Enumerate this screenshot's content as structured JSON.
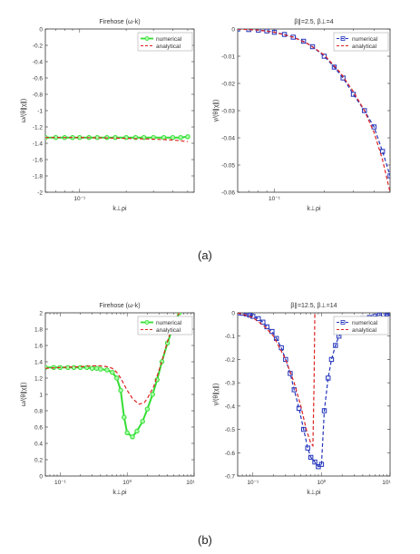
{
  "captions": {
    "a": "(a)",
    "b": "(b)"
  },
  "colors": {
    "numerical_a": "#33dd33",
    "numerical_b1": "#33dd33",
    "numerical_b2": "#2233bb",
    "analytical": "#dd2222",
    "axis": "#333333"
  },
  "chart_data": [
    {
      "id": "a1",
      "type": "line",
      "title": "Firehose (ω-k)",
      "xlabel": "k⊥ρi",
      "ylabel": "ω/(θ∥χ∥)",
      "x_scale": "log",
      "x_ticks": [
        {
          "v": 0.1,
          "label": "10⁻¹"
        }
      ],
      "ylim": [
        -2,
        0
      ],
      "y_ticks": [
        {
          "v": 0,
          "label": "0"
        },
        {
          "v": -0.2,
          "label": "-0.2"
        },
        {
          "v": -0.4,
          "label": "-0.4"
        },
        {
          "v": -0.6,
          "label": "-0.6"
        },
        {
          "v": -0.8,
          "label": "-0.8"
        },
        {
          "v": -1.0,
          "label": "-1"
        },
        {
          "v": -1.2,
          "label": "-1.2"
        },
        {
          "v": -1.4,
          "label": "-1.4"
        },
        {
          "v": -1.6,
          "label": "-1.6"
        },
        {
          "v": -1.8,
          "label": "-1.8"
        },
        {
          "v": -2.0,
          "label": "-2"
        }
      ],
      "legend_position": "top-right",
      "series": [
        {
          "name": "numerical",
          "style": "solid-circle",
          "x": [
            0.06,
            0.07,
            0.08,
            0.09,
            0.1,
            0.115,
            0.13,
            0.15,
            0.17,
            0.2,
            0.23,
            0.26,
            0.3,
            0.35,
            0.4,
            0.45,
            0.5
          ],
          "y": [
            -1.33,
            -1.33,
            -1.33,
            -1.33,
            -1.33,
            -1.33,
            -1.33,
            -1.33,
            -1.33,
            -1.33,
            -1.33,
            -1.33,
            -1.33,
            -1.33,
            -1.33,
            -1.33,
            -1.32
          ]
        },
        {
          "name": "analytical",
          "style": "dashed",
          "x": [
            0.06,
            0.1,
            0.15,
            0.2,
            0.25,
            0.3,
            0.35,
            0.4,
            0.45,
            0.5
          ],
          "y": [
            -1.33,
            -1.33,
            -1.335,
            -1.34,
            -1.345,
            -1.35,
            -1.355,
            -1.36,
            -1.37,
            -1.38
          ]
        }
      ]
    },
    {
      "id": "a2",
      "type": "line",
      "title": "β∥=2.5, β⊥=4",
      "xlabel": "k⊥ρi",
      "ylabel": "γ/(θ∥χ∥)",
      "x_scale": "log",
      "x_ticks": [
        {
          "v": 0.1,
          "label": "10⁻¹"
        }
      ],
      "ylim": [
        -0.06,
        0
      ],
      "y_ticks": [
        {
          "v": 0,
          "label": "0"
        },
        {
          "v": -0.01,
          "label": "-0.01"
        },
        {
          "v": -0.02,
          "label": "-0.02"
        },
        {
          "v": -0.03,
          "label": "-0.03"
        },
        {
          "v": -0.04,
          "label": "-0.04"
        },
        {
          "v": -0.05,
          "label": "-0.05"
        },
        {
          "v": -0.06,
          "label": "-0.06"
        }
      ],
      "legend_position": "top-right",
      "series": [
        {
          "name": "numerical",
          "style": "dashed-square",
          "x": [
            0.06,
            0.07,
            0.08,
            0.09,
            0.1,
            0.115,
            0.13,
            0.15,
            0.17,
            0.2,
            0.23,
            0.26,
            0.3,
            0.35,
            0.4,
            0.45,
            0.5
          ],
          "y": [
            0,
            -0.0002,
            -0.0004,
            -0.0007,
            -0.0012,
            -0.002,
            -0.003,
            -0.0045,
            -0.0065,
            -0.01,
            -0.014,
            -0.018,
            -0.024,
            -0.03,
            -0.036,
            -0.045,
            -0.054
          ]
        },
        {
          "name": "analytical",
          "style": "dashed",
          "x": [
            0.06,
            0.08,
            0.1,
            0.13,
            0.16,
            0.2,
            0.25,
            0.3,
            0.35,
            0.4,
            0.45,
            0.5
          ],
          "y": [
            0,
            -0.0004,
            -0.0012,
            -0.003,
            -0.0055,
            -0.0095,
            -0.016,
            -0.023,
            -0.03,
            -0.038,
            -0.048,
            -0.06
          ]
        }
      ]
    },
    {
      "id": "b1",
      "type": "line",
      "title": "Firehose (ω-k)",
      "xlabel": "k⊥ρi",
      "ylabel": "ω/(θ∥χ∥)",
      "x_scale": "log",
      "x_ticks": [
        {
          "v": 0.1,
          "label": "10⁻¹"
        },
        {
          "v": 1,
          "label": "10⁰"
        },
        {
          "v": 10,
          "label": "10¹"
        }
      ],
      "ylim": [
        0,
        2
      ],
      "y_ticks": [
        {
          "v": 0,
          "label": "0"
        },
        {
          "v": 0.2,
          "label": "0.2"
        },
        {
          "v": 0.4,
          "label": "0.4"
        },
        {
          "v": 0.6,
          "label": "0.6"
        },
        {
          "v": 0.8,
          "label": "0.8"
        },
        {
          "v": 1.0,
          "label": "1"
        },
        {
          "v": 1.2,
          "label": "1.2"
        },
        {
          "v": 1.4,
          "label": "1.4"
        },
        {
          "v": 1.6,
          "label": "1.6"
        },
        {
          "v": 1.8,
          "label": "1.8"
        },
        {
          "v": 2.0,
          "label": "2"
        }
      ],
      "legend_position": "top-right",
      "series": [
        {
          "name": "numerical",
          "style": "solid-circle",
          "x": [
            0.06,
            0.08,
            0.1,
            0.13,
            0.16,
            0.2,
            0.25,
            0.3,
            0.35,
            0.4,
            0.5,
            0.6,
            0.7,
            0.8,
            0.9,
            1.0,
            1.2,
            1.4,
            1.7,
            2.0,
            2.4,
            2.8,
            3.3,
            4.0,
            5.0,
            6.0
          ],
          "y": [
            1.33,
            1.33,
            1.33,
            1.33,
            1.33,
            1.33,
            1.33,
            1.32,
            1.32,
            1.31,
            1.3,
            1.27,
            1.2,
            1.05,
            0.72,
            0.53,
            0.48,
            0.55,
            0.67,
            0.82,
            1.0,
            1.18,
            1.4,
            1.63,
            1.86,
            2.0
          ]
        },
        {
          "name": "analytical",
          "style": "dashed",
          "x": [
            0.06,
            0.1,
            0.2,
            0.3,
            0.4,
            0.5,
            0.6,
            0.7,
            0.8,
            1.0,
            1.2,
            1.5,
            1.8,
            2.0,
            2.5,
            3.0,
            3.5,
            4.0,
            5.0,
            6.0
          ],
          "y": [
            1.32,
            1.33,
            1.34,
            1.35,
            1.35,
            1.34,
            1.32,
            1.27,
            1.2,
            1.05,
            0.95,
            0.88,
            0.9,
            0.95,
            1.1,
            1.3,
            1.48,
            1.65,
            1.9,
            2.0
          ]
        }
      ]
    },
    {
      "id": "b2",
      "type": "line",
      "title": "β∥=12.5, β⊥=14",
      "xlabel": "k⊥ρi",
      "ylabel": "γ/(θ∥χ∥)",
      "x_scale": "log",
      "x_ticks": [
        {
          "v": 0.1,
          "label": "10⁻¹"
        },
        {
          "v": 1,
          "label": "10⁰"
        },
        {
          "v": 10,
          "label": "10¹"
        }
      ],
      "ylim": [
        -0.7,
        0
      ],
      "y_ticks": [
        {
          "v": 0,
          "label": "0"
        },
        {
          "v": -0.1,
          "label": "-0.1"
        },
        {
          "v": -0.2,
          "label": "-0.2"
        },
        {
          "v": -0.3,
          "label": "-0.3"
        },
        {
          "v": -0.4,
          "label": "-0.4"
        },
        {
          "v": -0.5,
          "label": "-0.5"
        },
        {
          "v": -0.6,
          "label": "-0.6"
        },
        {
          "v": -0.7,
          "label": "-0.7"
        }
      ],
      "legend_position": "top-right",
      "series": [
        {
          "name": "numerical",
          "style": "dashed-square",
          "x": [
            0.06,
            0.07,
            0.08,
            0.09,
            0.1,
            0.12,
            0.14,
            0.16,
            0.19,
            0.22,
            0.26,
            0.3,
            0.35,
            0.4,
            0.47,
            0.55,
            0.63,
            0.7,
            0.8,
            0.9,
            1.0,
            1.1,
            1.25,
            1.4,
            1.6,
            1.8,
            2.0,
            2.3,
            2.6,
            3.0,
            3.5,
            4.0,
            5.0,
            6.0,
            7.0,
            8.0,
            9.0,
            10.0
          ],
          "y": [
            0,
            -0.002,
            -0.005,
            -0.01,
            -0.015,
            -0.025,
            -0.04,
            -0.06,
            -0.08,
            -0.11,
            -0.15,
            -0.2,
            -0.26,
            -0.33,
            -0.41,
            -0.5,
            -0.58,
            -0.62,
            -0.64,
            -0.66,
            -0.65,
            -0.42,
            -0.28,
            -0.2,
            -0.14,
            -0.1,
            -0.075,
            -0.06,
            -0.05,
            -0.04,
            -0.03,
            -0.025,
            -0.02,
            -0.015,
            -0.01,
            -0.007,
            -0.004,
            -0.002
          ]
        },
        {
          "name": "analytical",
          "style": "dashed",
          "x": [
            0.06,
            0.1,
            0.15,
            0.2,
            0.3,
            0.4,
            0.5,
            0.6,
            0.7,
            0.75,
            0.78,
            0.8
          ],
          "y": [
            0,
            -0.02,
            -0.06,
            -0.1,
            -0.2,
            -0.3,
            -0.4,
            -0.5,
            -0.56,
            -0.57,
            -0.3,
            0
          ]
        }
      ]
    }
  ]
}
